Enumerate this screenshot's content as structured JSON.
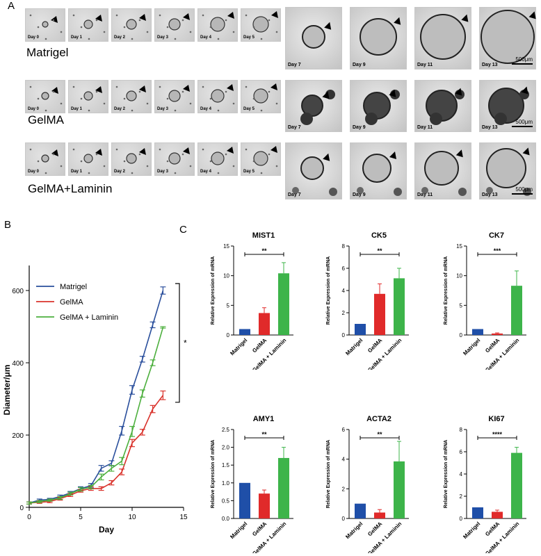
{
  "panel_a": {
    "letter": "A",
    "rows": [
      {
        "label": "Matrigel",
        "scale": "500μm"
      },
      {
        "label": "GelMA",
        "scale": "500μm"
      },
      {
        "label": "GelMA+Laminin",
        "scale": "500μm"
      }
    ],
    "days_small": [
      "Day 0",
      "Day 1",
      "Day 2",
      "Day 3",
      "Day 4",
      "Day 5"
    ],
    "days_large": [
      "Day 7",
      "Day 9",
      "Day 11",
      "Day 13"
    ]
  },
  "panel_b": {
    "letter": "B"
  },
  "panel_c": {
    "letter": "C"
  },
  "chart_data": [
    {
      "type": "line",
      "xlabel": "Day",
      "ylabel": "Diameter/μm",
      "xlim": [
        0,
        15
      ],
      "ylim": [
        0,
        650
      ],
      "xticks": [
        0,
        5,
        10,
        15
      ],
      "yticks": [
        0,
        200,
        400,
        600
      ],
      "legend_position": "top-left",
      "significance": "*",
      "x": [
        0,
        1,
        2,
        3,
        4,
        5,
        6,
        7,
        8,
        9,
        10,
        11,
        12,
        13
      ],
      "series": [
        {
          "name": "Matrigel",
          "color": "#2a4f9c",
          "values": [
            12,
            20,
            22,
            30,
            40,
            52,
            60,
            108,
            122,
            212,
            325,
            410,
            505,
            600
          ],
          "err": [
            3,
            3,
            3,
            4,
            4,
            5,
            6,
            8,
            7,
            12,
            12,
            8,
            8,
            10
          ]
        },
        {
          "name": "GelMA",
          "color": "#d9322b",
          "values": [
            12,
            14,
            16,
            24,
            34,
            46,
            52,
            52,
            68,
            98,
            178,
            208,
            272,
            310
          ],
          "err": [
            3,
            3,
            3,
            4,
            4,
            4,
            5,
            5,
            6,
            8,
            10,
            8,
            10,
            12
          ]
        },
        {
          "name": "GelMA + Laminin",
          "color": "#4caf3d",
          "values": [
            12,
            16,
            20,
            26,
            38,
            50,
            56,
            84,
            108,
            128,
            210,
            315,
            400,
            498
          ],
          "err": [
            3,
            3,
            3,
            4,
            4,
            5,
            5,
            8,
            8,
            10,
            14,
            10,
            8,
            2
          ]
        }
      ]
    },
    {
      "type": "bar",
      "title": "MIST1",
      "ylabel": "Relative Expression of mRNA",
      "categories": [
        "Matrigel",
        "GelMA",
        "GelMA + Laminin"
      ],
      "colors": [
        "#1f4fa8",
        "#e02a2a",
        "#3db44a"
      ],
      "values": [
        1.0,
        3.7,
        10.4
      ],
      "err": [
        0,
        0.9,
        1.8
      ],
      "ylim": [
        0,
        15
      ],
      "yticks": [
        0,
        5,
        10,
        15
      ],
      "sig": "**"
    },
    {
      "type": "bar",
      "title": "CK5",
      "ylabel": "Relative Expression of mRNA",
      "categories": [
        "Matrigel",
        "GelMA",
        "GelMA + Laminin"
      ],
      "colors": [
        "#1f4fa8",
        "#e02a2a",
        "#3db44a"
      ],
      "values": [
        1.0,
        3.7,
        5.1
      ],
      "err": [
        0,
        0.9,
        0.9
      ],
      "ylim": [
        0,
        8
      ],
      "yticks": [
        0,
        2,
        4,
        6,
        8
      ],
      "sig": "**"
    },
    {
      "type": "bar",
      "title": "CK7",
      "ylabel": "Relative Expression of mRNA",
      "categories": [
        "Matrigel",
        "GelMA",
        "GelMA + Laminin"
      ],
      "colors": [
        "#1f4fa8",
        "#e02a2a",
        "#3db44a"
      ],
      "values": [
        1.0,
        0.25,
        8.3
      ],
      "err": [
        0,
        0.1,
        2.5
      ],
      "ylim": [
        0,
        15
      ],
      "yticks": [
        0,
        5,
        10,
        15
      ],
      "sig": "***"
    },
    {
      "type": "bar",
      "title": "AMY1",
      "ylabel": "Relative Expression of mRNA",
      "categories": [
        "Matrigel",
        "GelMA",
        "GelMA + Laminin"
      ],
      "colors": [
        "#1f4fa8",
        "#e02a2a",
        "#3db44a"
      ],
      "values": [
        1.0,
        0.7,
        1.7
      ],
      "err": [
        0,
        0.1,
        0.3
      ],
      "ylim": [
        0,
        2.5
      ],
      "yticks": [
        0,
        0.5,
        1.0,
        1.5,
        2.0,
        2.5
      ],
      "sig": "**"
    },
    {
      "type": "bar",
      "title": "ACTA2",
      "ylabel": "Relative Expression of mRNA",
      "categories": [
        "Matrigel",
        "GelMA",
        "GelMA + Laminin"
      ],
      "colors": [
        "#1f4fa8",
        "#e02a2a",
        "#3db44a"
      ],
      "values": [
        1.0,
        0.4,
        3.85
      ],
      "err": [
        0,
        0.2,
        1.35
      ],
      "ylim": [
        0,
        6
      ],
      "yticks": [
        0,
        2,
        4,
        6
      ],
      "sig": "**"
    },
    {
      "type": "bar",
      "title": "KI67",
      "ylabel": "Relative Expression of mRNA",
      "categories": [
        "Matrigel",
        "GelMA",
        "GelMA + Laminin"
      ],
      "colors": [
        "#1f4fa8",
        "#e02a2a",
        "#3db44a"
      ],
      "values": [
        1.0,
        0.6,
        5.9
      ],
      "err": [
        0,
        0.15,
        0.5
      ],
      "ylim": [
        0,
        8
      ],
      "yticks": [
        0,
        2,
        4,
        6,
        8
      ],
      "sig": "****"
    }
  ]
}
